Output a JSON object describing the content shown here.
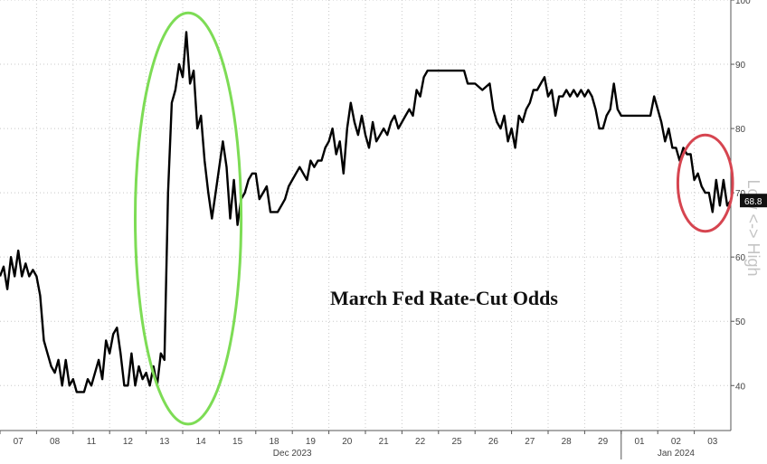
{
  "chart_data": {
    "type": "line",
    "title": "March Fed Rate-Cut Odds",
    "ylabel": "Low <-> High",
    "ylim": [
      33,
      100
    ],
    "yticks": [
      40,
      50,
      60,
      70,
      80,
      90,
      100
    ],
    "ytick_labels": [
      "40",
      "50",
      "60",
      "70",
      "80",
      "90",
      "100"
    ],
    "last_value_label": "68.8",
    "last_value": 68.8,
    "grid": true,
    "x_day_labels": [
      "07",
      "08",
      "11",
      "12",
      "13",
      "14",
      "15",
      "18",
      "19",
      "20",
      "21",
      "22",
      "25",
      "26",
      "27",
      "28",
      "29",
      "01",
      "02",
      "03"
    ],
    "x_period_labels": [
      "Dec 2023",
      "Jan 2024"
    ],
    "series": [
      {
        "color": "#000000",
        "points": [
          [
            0.0,
            57
          ],
          [
            0.1,
            58.5
          ],
          [
            0.2,
            55
          ],
          [
            0.3,
            60
          ],
          [
            0.4,
            57
          ],
          [
            0.5,
            61
          ],
          [
            0.6,
            57
          ],
          [
            0.7,
            59
          ],
          [
            0.8,
            57
          ],
          [
            0.9,
            58
          ],
          [
            1.0,
            57
          ],
          [
            1.1,
            54
          ],
          [
            1.2,
            47
          ],
          [
            1.3,
            45
          ],
          [
            1.4,
            43
          ],
          [
            1.5,
            42
          ],
          [
            1.6,
            44
          ],
          [
            1.7,
            40
          ],
          [
            1.8,
            44
          ],
          [
            1.9,
            40
          ],
          [
            2.0,
            41
          ],
          [
            2.1,
            39
          ],
          [
            2.3,
            39
          ],
          [
            2.4,
            41
          ],
          [
            2.5,
            40
          ],
          [
            2.7,
            44
          ],
          [
            2.8,
            41
          ],
          [
            2.9,
            47
          ],
          [
            3.0,
            45
          ],
          [
            3.1,
            48
          ],
          [
            3.2,
            49
          ],
          [
            3.3,
            45
          ],
          [
            3.4,
            40
          ],
          [
            3.5,
            40
          ],
          [
            3.6,
            45
          ],
          [
            3.7,
            40
          ],
          [
            3.8,
            43
          ],
          [
            3.9,
            41
          ],
          [
            4.0,
            42
          ],
          [
            4.1,
            40
          ],
          [
            4.2,
            43
          ],
          [
            4.3,
            40
          ],
          [
            4.4,
            45
          ],
          [
            4.5,
            44
          ],
          [
            4.6,
            70
          ],
          [
            4.7,
            84
          ],
          [
            4.8,
            86
          ],
          [
            4.9,
            90
          ],
          [
            5.0,
            88
          ],
          [
            5.1,
            95
          ],
          [
            5.2,
            87
          ],
          [
            5.3,
            89
          ],
          [
            5.4,
            80
          ],
          [
            5.5,
            82
          ],
          [
            5.6,
            75
          ],
          [
            5.7,
            70
          ],
          [
            5.8,
            66
          ],
          [
            5.9,
            70
          ],
          [
            6.0,
            74
          ],
          [
            6.1,
            78
          ],
          [
            6.2,
            74
          ],
          [
            6.3,
            66
          ],
          [
            6.4,
            72
          ],
          [
            6.5,
            65
          ],
          [
            6.6,
            69
          ],
          [
            6.7,
            70
          ],
          [
            6.8,
            72
          ],
          [
            6.9,
            73
          ],
          [
            7.0,
            73
          ],
          [
            7.1,
            69
          ],
          [
            7.2,
            70
          ],
          [
            7.3,
            71
          ],
          [
            7.4,
            67
          ],
          [
            7.5,
            67
          ],
          [
            7.6,
            67
          ],
          [
            7.7,
            68
          ],
          [
            7.8,
            69
          ],
          [
            7.9,
            71
          ],
          [
            8.0,
            72
          ],
          [
            8.1,
            73
          ],
          [
            8.2,
            74
          ],
          [
            8.3,
            73
          ],
          [
            8.4,
            72
          ],
          [
            8.5,
            75
          ],
          [
            8.6,
            74
          ],
          [
            8.7,
            75
          ],
          [
            8.8,
            75
          ],
          [
            8.9,
            77
          ],
          [
            9.0,
            78
          ],
          [
            9.1,
            80
          ],
          [
            9.2,
            76
          ],
          [
            9.3,
            78
          ],
          [
            9.4,
            73
          ],
          [
            9.5,
            80
          ],
          [
            9.6,
            84
          ],
          [
            9.7,
            81
          ],
          [
            9.8,
            79
          ],
          [
            9.9,
            82
          ],
          [
            10.0,
            79
          ],
          [
            10.1,
            77
          ],
          [
            10.2,
            81
          ],
          [
            10.3,
            78
          ],
          [
            10.4,
            79
          ],
          [
            10.5,
            80
          ],
          [
            10.6,
            79
          ],
          [
            10.7,
            81
          ],
          [
            10.8,
            82
          ],
          [
            10.9,
            80
          ],
          [
            11.0,
            81
          ],
          [
            11.1,
            82
          ],
          [
            11.2,
            83
          ],
          [
            11.3,
            82
          ],
          [
            11.4,
            86
          ],
          [
            11.5,
            85
          ],
          [
            11.6,
            88
          ],
          [
            11.7,
            89
          ],
          [
            11.8,
            89
          ],
          [
            12.0,
            89
          ],
          [
            12.5,
            89
          ],
          [
            12.7,
            89
          ],
          [
            12.8,
            87
          ],
          [
            13.0,
            87
          ],
          [
            13.2,
            86
          ],
          [
            13.4,
            87
          ],
          [
            13.5,
            83
          ],
          [
            13.6,
            81
          ],
          [
            13.7,
            80
          ],
          [
            13.8,
            82
          ],
          [
            13.9,
            78
          ],
          [
            14.0,
            80
          ],
          [
            14.1,
            77
          ],
          [
            14.2,
            82
          ],
          [
            14.3,
            81
          ],
          [
            14.4,
            83
          ],
          [
            14.5,
            84
          ],
          [
            14.6,
            86
          ],
          [
            14.7,
            86
          ],
          [
            14.8,
            87
          ],
          [
            14.9,
            88
          ],
          [
            15.0,
            85
          ],
          [
            15.1,
            86
          ],
          [
            15.2,
            82
          ],
          [
            15.3,
            85
          ],
          [
            15.4,
            85
          ],
          [
            15.5,
            86
          ],
          [
            15.6,
            85
          ],
          [
            15.7,
            86
          ],
          [
            15.8,
            85
          ],
          [
            15.9,
            86
          ],
          [
            16.0,
            85
          ],
          [
            16.1,
            86
          ],
          [
            16.2,
            85
          ],
          [
            16.3,
            83
          ],
          [
            16.4,
            80
          ],
          [
            16.5,
            80
          ],
          [
            16.6,
            82
          ],
          [
            16.7,
            83
          ],
          [
            16.8,
            87
          ],
          [
            16.9,
            83
          ],
          [
            17.0,
            82
          ],
          [
            17.3,
            82
          ],
          [
            17.5,
            82
          ],
          [
            17.8,
            82
          ],
          [
            17.9,
            85
          ],
          [
            18.0,
            83
          ],
          [
            18.1,
            81
          ],
          [
            18.2,
            78
          ],
          [
            18.3,
            80
          ],
          [
            18.4,
            77
          ],
          [
            18.5,
            77
          ],
          [
            18.6,
            75
          ],
          [
            18.7,
            77
          ],
          [
            18.8,
            76
          ],
          [
            18.9,
            76
          ],
          [
            19.0,
            72
          ],
          [
            19.1,
            73
          ],
          [
            19.2,
            71
          ],
          [
            19.3,
            70
          ],
          [
            19.4,
            70
          ],
          [
            19.5,
            67
          ],
          [
            19.6,
            72
          ],
          [
            19.7,
            68
          ],
          [
            19.8,
            72
          ],
          [
            19.9,
            68
          ],
          [
            20.0,
            68.8
          ]
        ]
      }
    ],
    "annotations": [
      {
        "shape": "ellipse",
        "color": "#7ddc55",
        "x_center": 5.15,
        "y_center": 66,
        "x_radius": 1.45,
        "y_radius": 32
      },
      {
        "shape": "ellipse",
        "color": "#d64550",
        "x_center": 19.3,
        "y_center": 71.5,
        "x_radius": 0.75,
        "y_radius": 7.5
      }
    ]
  }
}
